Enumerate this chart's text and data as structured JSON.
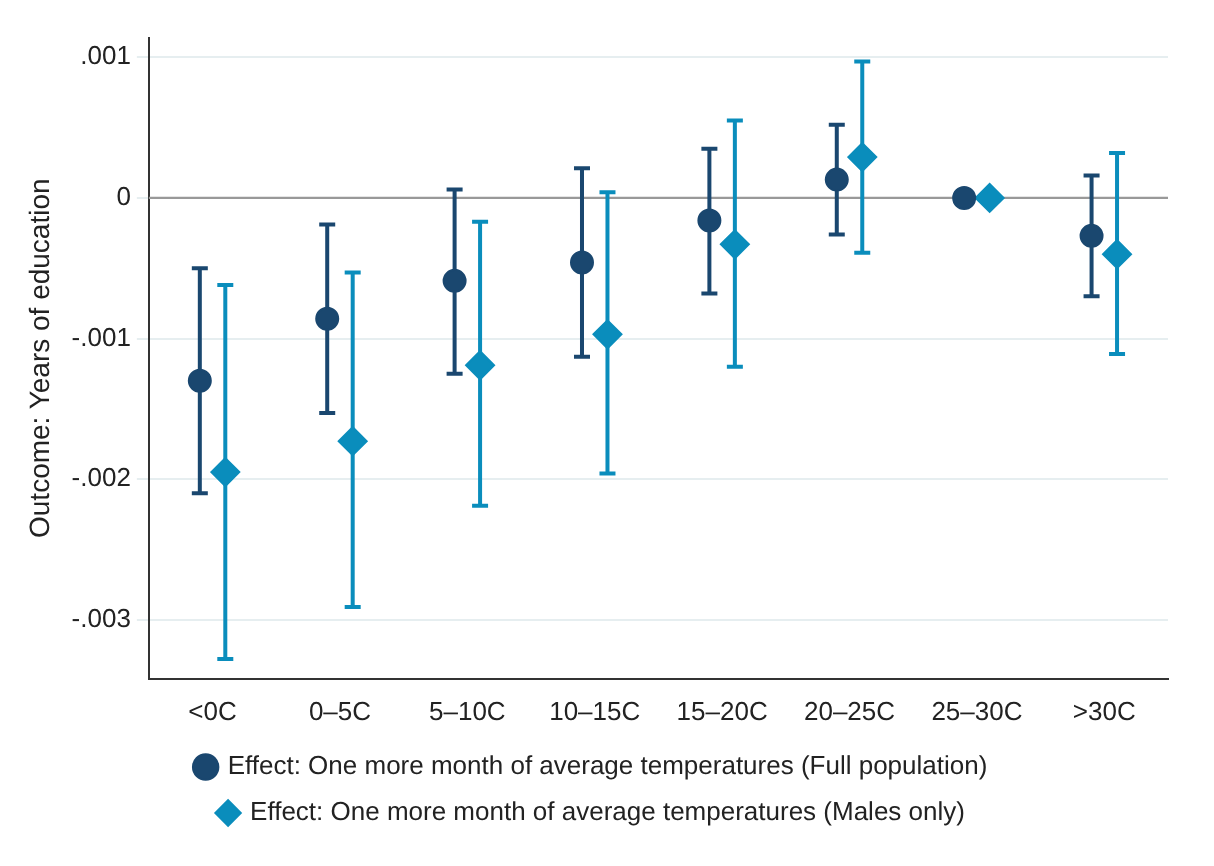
{
  "chart_data": {
    "type": "scatter",
    "ylabel": "Outcome: Years of education",
    "categories": [
      "<0C",
      "0–5C",
      "5–10C",
      "10–15C",
      "15–20C",
      "20–25C",
      "25–30C",
      ">30C"
    ],
    "series": [
      {
        "name": "Effect: One more month of average temperatures (Full population)",
        "color": "#1a476f",
        "marker": "circle",
        "values": [
          -0.0013,
          -0.00086,
          -0.00059,
          -0.00046,
          -0.00016,
          0.00013,
          0,
          -0.00027
        ],
        "errors": [
          [
            -0.0021,
            -0.0005
          ],
          [
            -0.00153,
            -0.00019
          ],
          [
            -0.00125,
            6e-05
          ],
          [
            -0.00113,
            0.00021
          ],
          [
            -0.00068,
            0.00035
          ],
          [
            -0.00026,
            0.00052
          ],
          null,
          [
            -0.0007,
            0.00016
          ]
        ]
      },
      {
        "name": "Effect: One more month of average temperatures (Males only)",
        "color": "#0a8dbc",
        "marker": "diamond",
        "values": [
          -0.00195,
          -0.00173,
          -0.00119,
          -0.00097,
          -0.00033,
          0.00029,
          0,
          -0.0004
        ],
        "errors": [
          [
            -0.00328,
            -0.00062
          ],
          [
            -0.00291,
            -0.00053
          ],
          [
            -0.00219,
            -0.00017
          ],
          [
            -0.00196,
            4e-05
          ],
          [
            -0.0012,
            0.00055
          ],
          [
            -0.00039,
            0.00097
          ],
          null,
          [
            -0.00111,
            0.00032
          ]
        ]
      }
    ],
    "ylim": [
      -0.00342,
      0.00114
    ],
    "yticks": [
      {
        "value": 0.001,
        "label": ".001"
      },
      {
        "value": 0,
        "label": "0"
      },
      {
        "value": -0.001,
        "label": "-.001"
      },
      {
        "value": -0.002,
        "label": "-.002"
      },
      {
        "value": -0.003,
        "label": "-.003"
      }
    ],
    "grid": "y",
    "legend": "bottom",
    "ref_lines": [
      {
        "axis": "y",
        "value": 0,
        "color": "#999999"
      }
    ]
  }
}
